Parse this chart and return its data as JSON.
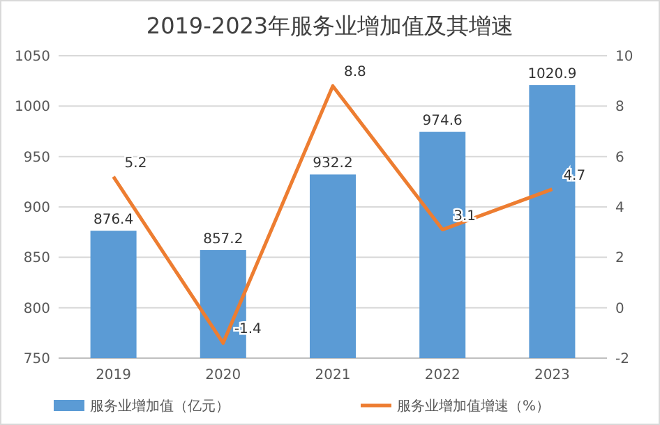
{
  "chart_data": {
    "type": "bar",
    "title": "2019-2023年服务业增加值及其增速",
    "categories": [
      "2019",
      "2020",
      "2021",
      "2022",
      "2023"
    ],
    "series": [
      {
        "name": "服务业增加值（亿元）",
        "color": "#5b9bd5",
        "values": [
          876.4,
          857.2,
          932.2,
          974.6,
          1020.9
        ]
      },
      {
        "name": "服务业增加值增速（%）",
        "type": "line",
        "axis": "y2",
        "color": "#ed7d31",
        "values": [
          5.2,
          -1.4,
          8.8,
          3.1,
          4.7
        ]
      }
    ],
    "ylim": [
      750,
      1050
    ],
    "yticks": [
      750,
      800,
      850,
      900,
      950,
      1000,
      1050
    ],
    "y2lim": [
      -2,
      10
    ],
    "y2ticks": [
      -2,
      0,
      2,
      4,
      6,
      8,
      10
    ],
    "grid": "y",
    "legend": "bottom",
    "data_labels": true,
    "marker": "none",
    "line_style": "solid"
  }
}
